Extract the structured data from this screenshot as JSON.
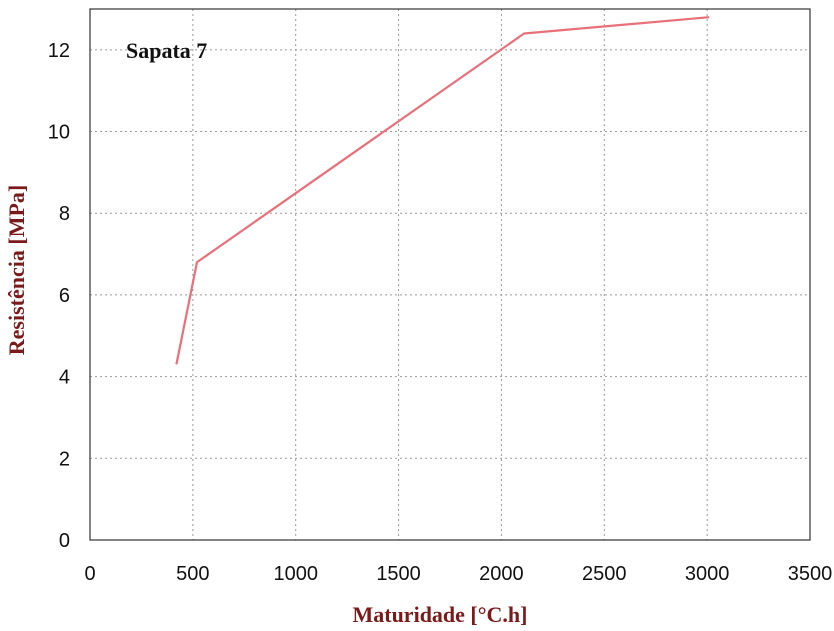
{
  "chart_data": {
    "type": "line",
    "title": "",
    "annotation": "Sapata 7",
    "xlabel": "Maturidade [°C.h]",
    "ylabel": "Resistência [MPa]",
    "xlim": [
      0,
      3500
    ],
    "ylim": [
      0,
      13
    ],
    "xticks": [
      0,
      500,
      1000,
      1500,
      2000,
      2500,
      3000,
      3500
    ],
    "yticks": [
      0,
      2,
      4,
      6,
      8,
      10,
      12
    ],
    "xtick_labels": [
      "0",
      "500",
      "1000",
      "1500",
      "2000",
      "2500",
      "3000",
      "3500"
    ],
    "ytick_labels": [
      "0",
      "2",
      "4",
      "6",
      "8",
      "10",
      "12"
    ],
    "grid": true,
    "series": [
      {
        "color": "#e8707a",
        "x": [
          420,
          520,
          2110,
          3010
        ],
        "y": [
          4.3,
          6.8,
          12.4,
          12.8
        ]
      }
    ]
  }
}
